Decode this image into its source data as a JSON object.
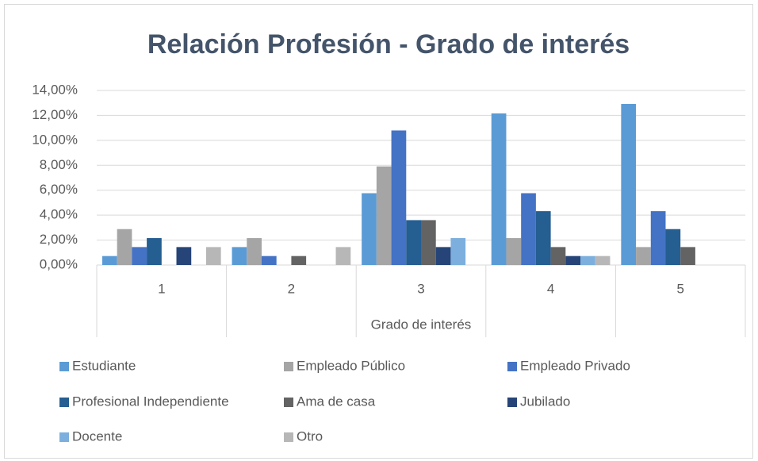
{
  "chart_data": {
    "type": "bar",
    "title": "Relación Profesión - Grado de interés",
    "x_label": "Grado de interés",
    "categories": [
      "1",
      "2",
      "3",
      "4",
      "5"
    ],
    "series": [
      {
        "name": "Estudiante",
        "color": "#5b9bd5",
        "values": [
          0.72,
          1.44,
          5.76,
          12.16,
          12.92
        ]
      },
      {
        "name": "Empleado Público",
        "color": "#a5a5a5",
        "values": [
          2.88,
          2.16,
          7.91,
          2.16,
          1.44
        ]
      },
      {
        "name": "Empleado Privado",
        "color": "#4472c4",
        "values": [
          1.44,
          0.72,
          10.79,
          5.76,
          4.32
        ]
      },
      {
        "name": "Profesional Independiente",
        "color": "#255e91",
        "values": [
          2.16,
          0,
          3.6,
          4.32,
          2.88
        ]
      },
      {
        "name": "Ama de casa",
        "color": "#636363",
        "values": [
          0,
          0.72,
          3.6,
          1.44,
          1.44
        ]
      },
      {
        "name": "Jubilado",
        "color": "#264478",
        "values": [
          1.44,
          0,
          1.44,
          0.72,
          0
        ]
      },
      {
        "name": "Docente",
        "color": "#7cafdd",
        "values": [
          0,
          0,
          2.16,
          0.72,
          0
        ]
      },
      {
        "name": "Otro",
        "color": "#b7b7b7",
        "values": [
          1.44,
          1.44,
          0,
          0.72,
          0
        ]
      }
    ],
    "ylim": [
      0,
      14
    ],
    "yticks": [
      {
        "value": 0,
        "label": "0,00%"
      },
      {
        "value": 2,
        "label": "2,00%"
      },
      {
        "value": 4,
        "label": "4,00%"
      },
      {
        "value": 6,
        "label": "6,00%"
      },
      {
        "value": 8,
        "label": "8,00%"
      },
      {
        "value": 10,
        "label": "10,00%"
      },
      {
        "value": 12,
        "label": "12,00%"
      },
      {
        "value": 14,
        "label": "14,00%"
      }
    ],
    "grid": true,
    "legend": "bottom"
  }
}
